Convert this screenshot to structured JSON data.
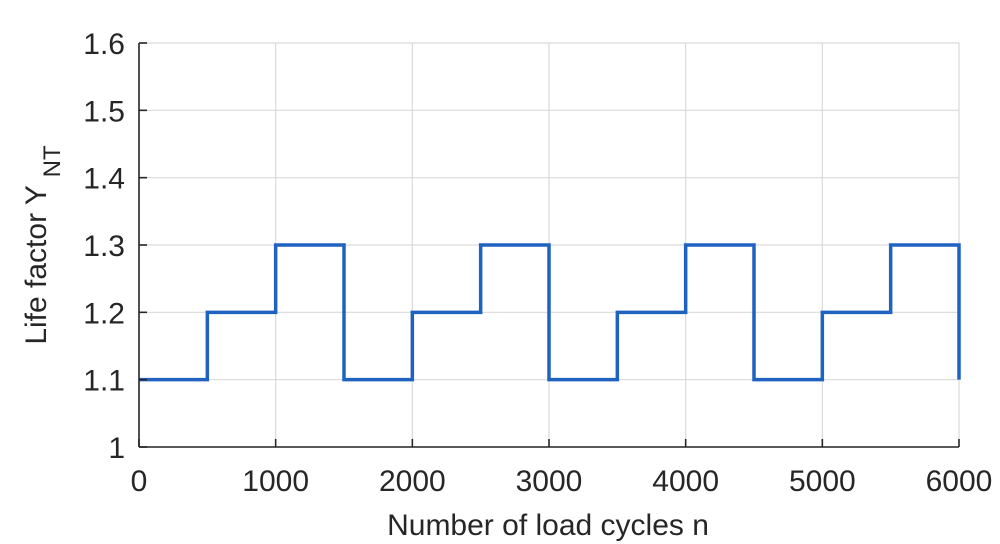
{
  "chart_data": {
    "type": "line",
    "step": true,
    "x": [
      0,
      500,
      1000,
      1500,
      2000,
      2500,
      3000,
      3500,
      4000,
      4500,
      5000,
      5500,
      6000
    ],
    "series": [
      {
        "values": [
          1.1,
          1.2,
          1.3,
          1.1,
          1.2,
          1.3,
          1.1,
          1.2,
          1.3,
          1.1,
          1.2,
          1.3,
          1.1
        ]
      }
    ],
    "xlabel": "Number of load cycles n",
    "ylabel_main": "Life factor Y",
    "ylabel_subscript": "NT",
    "xlim": [
      0,
      6000
    ],
    "ylim": [
      1,
      1.6
    ],
    "xticks": [
      0,
      1000,
      2000,
      3000,
      4000,
      5000,
      6000
    ],
    "yticks": [
      1,
      1.1,
      1.2,
      1.3,
      1.4,
      1.5,
      1.6
    ],
    "xtick_labels": [
      "0",
      "1000",
      "2000",
      "3000",
      "4000",
      "5000",
      "6000"
    ],
    "ytick_labels": [
      "1",
      "1.1",
      "1.2",
      "1.3",
      "1.4",
      "1.5",
      "1.6"
    ],
    "grid": true,
    "line_color": "#1f62c0"
  }
}
